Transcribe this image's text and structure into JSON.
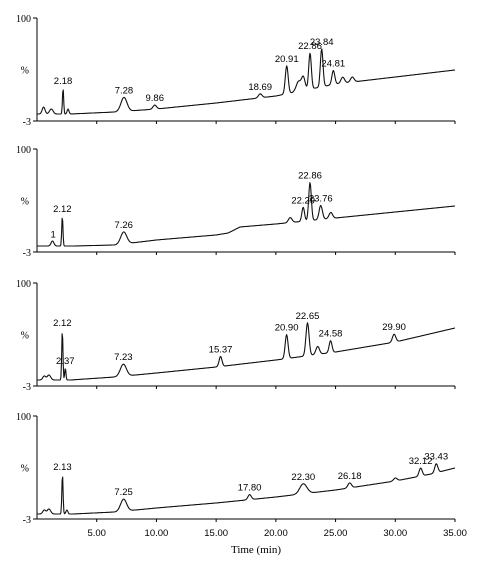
{
  "chart_data": [
    {
      "type": "line",
      "ylabel": "%",
      "ytop": "100",
      "ybottom": "-3",
      "peak_labels": [
        {
          "t": 2.18,
          "text": "2.18"
        },
        {
          "t": 7.28,
          "text": "7.28"
        },
        {
          "t": 9.86,
          "text": "9.86"
        },
        {
          "t": 18.69,
          "text": "18.69"
        },
        {
          "t": 20.91,
          "text": "20.91"
        },
        {
          "t": 22.86,
          "text": "22.86"
        },
        {
          "t": 23.84,
          "text": "23.84"
        },
        {
          "t": 24.81,
          "text": "24.81"
        }
      ],
      "baseline": [
        [
          0,
          4
        ],
        [
          2.8,
          4
        ],
        [
          6.5,
          6
        ],
        [
          10,
          9
        ],
        [
          15,
          15
        ],
        [
          20,
          22
        ],
        [
          25,
          34
        ],
        [
          30,
          41
        ],
        [
          35,
          48
        ]
      ],
      "peaks": [
        {
          "t": 0.55,
          "h": 7,
          "w": 0.12
        },
        {
          "t": 1.2,
          "h": 5,
          "w": 0.15
        },
        {
          "t": 2.18,
          "h": 26,
          "w": 0.05
        },
        {
          "t": 2.6,
          "h": 5,
          "w": 0.08
        },
        {
          "t": 7.28,
          "h": 14,
          "w": 0.25
        },
        {
          "t": 9.86,
          "h": 4,
          "w": 0.15
        },
        {
          "t": 18.69,
          "h": 4,
          "w": 0.15
        },
        {
          "t": 20.91,
          "h": 28,
          "w": 0.12
        },
        {
          "t": 21.9,
          "h": 10,
          "w": 0.2
        },
        {
          "t": 22.3,
          "h": 13,
          "w": 0.15
        },
        {
          "t": 22.86,
          "h": 36,
          "w": 0.11
        },
        {
          "t": 23.84,
          "h": 38,
          "w": 0.11
        },
        {
          "t": 24.81,
          "h": 14,
          "w": 0.12
        },
        {
          "t": 25.6,
          "h": 6,
          "w": 0.15
        },
        {
          "t": 26.4,
          "h": 5,
          "w": 0.15
        }
      ]
    },
    {
      "type": "line",
      "ylabel": "%",
      "ytop": "100",
      "ybottom": "-3",
      "peak_labels": [
        {
          "t": 1.35,
          "text": "1"
        },
        {
          "t": 2.12,
          "text": "2.12"
        },
        {
          "t": 7.26,
          "text": "7.26"
        },
        {
          "t": 22.29,
          "text": "22.29"
        },
        {
          "t": 22.86,
          "text": "22.86"
        },
        {
          "t": 23.76,
          "text": "23.76"
        }
      ],
      "baseline": [
        [
          0,
          3
        ],
        [
          3,
          3
        ],
        [
          6.5,
          4
        ],
        [
          10,
          9
        ],
        [
          15,
          14
        ],
        [
          16,
          16
        ],
        [
          17,
          22
        ],
        [
          20,
          25
        ],
        [
          25,
          31
        ],
        [
          30,
          37
        ],
        [
          35,
          43
        ]
      ],
      "peaks": [
        {
          "t": 1.3,
          "h": 5,
          "w": 0.12
        },
        {
          "t": 2.12,
          "h": 30,
          "w": 0.05
        },
        {
          "t": 7.26,
          "h": 12,
          "w": 0.25
        },
        {
          "t": 21.2,
          "h": 5,
          "w": 0.15
        },
        {
          "t": 22.29,
          "h": 14,
          "w": 0.11
        },
        {
          "t": 22.86,
          "h": 38,
          "w": 0.11
        },
        {
          "t": 23.76,
          "h": 14,
          "w": 0.14
        },
        {
          "t": 24.6,
          "h": 6,
          "w": 0.15
        }
      ]
    },
    {
      "type": "line",
      "ylabel": "%",
      "ytop": "100",
      "ybottom": "-3",
      "peak_labels": [
        {
          "t": 2.12,
          "text": "2.12"
        },
        {
          "t": 2.37,
          "text": "2.37"
        },
        {
          "t": 7.23,
          "text": "7.23"
        },
        {
          "t": 15.37,
          "text": "15.37"
        },
        {
          "t": 20.9,
          "text": "20.90"
        },
        {
          "t": 22.65,
          "text": "22.65"
        },
        {
          "t": 24.58,
          "text": "24.58"
        },
        {
          "t": 29.9,
          "text": "29.90"
        }
      ],
      "baseline": [
        [
          0,
          3
        ],
        [
          2.8,
          3
        ],
        [
          6.5,
          6
        ],
        [
          10,
          10
        ],
        [
          15,
          16
        ],
        [
          20,
          23
        ],
        [
          25,
          31
        ],
        [
          30,
          41
        ],
        [
          35,
          55
        ]
      ],
      "peaks": [
        {
          "t": 0.6,
          "h": 4,
          "w": 0.12
        },
        {
          "t": 1.0,
          "h": 5,
          "w": 0.15
        },
        {
          "t": 2.12,
          "h": 50,
          "w": 0.05
        },
        {
          "t": 2.37,
          "h": 12,
          "w": 0.05
        },
        {
          "t": 7.23,
          "h": 12,
          "w": 0.25
        },
        {
          "t": 15.37,
          "h": 10,
          "w": 0.12
        },
        {
          "t": 20.9,
          "h": 24,
          "w": 0.12
        },
        {
          "t": 22.65,
          "h": 33,
          "w": 0.13
        },
        {
          "t": 23.5,
          "h": 8,
          "w": 0.15
        },
        {
          "t": 24.58,
          "h": 12,
          "w": 0.12
        },
        {
          "t": 29.9,
          "h": 8,
          "w": 0.14
        }
      ]
    },
    {
      "type": "line",
      "ylabel": "%",
      "ytop": "100",
      "ybottom": "-3",
      "peak_labels": [
        {
          "t": 2.13,
          "text": "2.13"
        },
        {
          "t": 7.25,
          "text": "7.25"
        },
        {
          "t": 17.8,
          "text": "17.80"
        },
        {
          "t": 22.3,
          "text": "22.30"
        },
        {
          "t": 26.18,
          "text": "26.18"
        },
        {
          "t": 32.12,
          "text": "32.12"
        },
        {
          "t": 33.43,
          "text": "33.43"
        }
      ],
      "baseline": [
        [
          0,
          2
        ],
        [
          3,
          2
        ],
        [
          6.5,
          4
        ],
        [
          10,
          8
        ],
        [
          15,
          13
        ],
        [
          20,
          19
        ],
        [
          25,
          26
        ],
        [
          30,
          35
        ],
        [
          33,
          42
        ],
        [
          35,
          48
        ]
      ],
      "peaks": [
        {
          "t": 0.6,
          "h": 4,
          "w": 0.12
        },
        {
          "t": 1.0,
          "h": 5,
          "w": 0.15
        },
        {
          "t": 2.13,
          "h": 40,
          "w": 0.05
        },
        {
          "t": 2.5,
          "h": 4,
          "w": 0.08
        },
        {
          "t": 7.25,
          "h": 12,
          "w": 0.25
        },
        {
          "t": 17.8,
          "h": 5,
          "w": 0.14
        },
        {
          "t": 22.3,
          "h": 10,
          "w": 0.3
        },
        {
          "t": 26.18,
          "h": 5,
          "w": 0.15
        },
        {
          "t": 30.0,
          "h": 3,
          "w": 0.15
        },
        {
          "t": 32.12,
          "h": 8,
          "w": 0.13
        },
        {
          "t": 33.43,
          "h": 9,
          "w": 0.13
        }
      ]
    }
  ],
  "x_axis": {
    "ticks": [
      5,
      10,
      15,
      20,
      25,
      30,
      35
    ],
    "tick_labels": [
      "5.00",
      "10.00",
      "15.00",
      "20.00",
      "25.00",
      "30.00",
      "35.00"
    ],
    "label": "Time (min)",
    "range": [
      0,
      35
    ]
  }
}
